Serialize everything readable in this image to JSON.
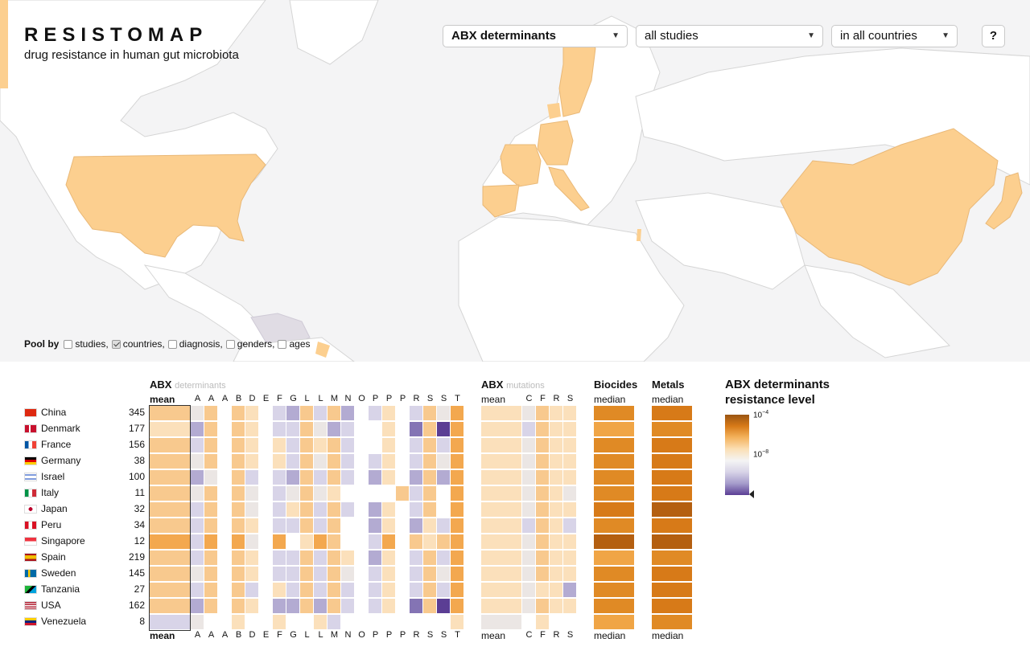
{
  "app": {
    "title": "RESISTOMAP",
    "subtitle": "drug resistance in human gut microbiota"
  },
  "controls": {
    "dataset": "ABX determinants",
    "studies": "all studies",
    "countries": "in all countries",
    "help": "?"
  },
  "pool": {
    "label": "Pool by",
    "options": [
      {
        "label": "studies,",
        "checked": false
      },
      {
        "label": "countries,",
        "checked": true
      },
      {
        "label": "diagnosis,",
        "checked": false
      },
      {
        "label": "genders,",
        "checked": false
      },
      {
        "label": "ages",
        "checked": false
      }
    ]
  },
  "colors": {
    "map_highlight": "#fccf8f",
    "map_bg": "#f4f4f5",
    "ocean": "#f4f4f5"
  },
  "groups": {
    "abx": {
      "title": "ABX",
      "sub": "determinants",
      "mean": "mean",
      "letters": [
        "A",
        "A",
        "A",
        "B",
        "D",
        "E",
        "F",
        "G",
        "L",
        "L",
        "M",
        "N",
        "O",
        "P",
        "P",
        "P",
        "R",
        "S",
        "S",
        "T"
      ]
    },
    "mut": {
      "title": "ABX",
      "sub": "mutations",
      "mean": "mean",
      "letters": [
        "C",
        "F",
        "R",
        "S"
      ]
    },
    "bio": {
      "title": "Biocides",
      "sub": "median"
    },
    "met": {
      "title": "Metals",
      "sub": "median"
    }
  },
  "countries": [
    {
      "name": "China",
      "count": "345"
    },
    {
      "name": "Denmark",
      "count": "177"
    },
    {
      "name": "France",
      "count": "156"
    },
    {
      "name": "Germany",
      "count": "38"
    },
    {
      "name": "Israel",
      "count": "100"
    },
    {
      "name": "Italy",
      "count": "11"
    },
    {
      "name": "Japan",
      "count": "32"
    },
    {
      "name": "Peru",
      "count": "34"
    },
    {
      "name": "Singapore",
      "count": "12"
    },
    {
      "name": "Spain",
      "count": "219"
    },
    {
      "name": "Sweden",
      "count": "145"
    },
    {
      "name": "Tanzania",
      "count": "27"
    },
    {
      "name": "USA",
      "count": "162"
    },
    {
      "name": "Venezuela",
      "count": "8"
    }
  ],
  "legend": {
    "title": "ABX determinants resistance level",
    "high": "10",
    "high_exp": "−4",
    "mid": "10",
    "mid_exp": "−8"
  },
  "matrix": {
    "abx_mean": [
      2,
      1,
      2,
      2,
      2,
      2,
      2,
      2,
      3,
      2,
      2,
      2,
      2,
      -1
    ],
    "abx": [
      [
        0,
        2,
        null,
        2,
        1,
        null,
        -1,
        -2,
        2,
        -1,
        2,
        -2,
        null,
        -1,
        1,
        null,
        -1,
        2,
        0,
        3
      ],
      [
        -2,
        2,
        null,
        2,
        1,
        null,
        -1,
        -1,
        2,
        0,
        -2,
        -1,
        null,
        null,
        1,
        null,
        -3,
        2,
        -4,
        3
      ],
      [
        -1,
        2,
        null,
        2,
        1,
        null,
        1,
        -1,
        2,
        1,
        2,
        -1,
        null,
        null,
        1,
        null,
        -1,
        2,
        -1,
        3
      ],
      [
        0,
        2,
        null,
        2,
        1,
        null,
        1,
        -1,
        2,
        0,
        2,
        -1,
        null,
        -1,
        1,
        null,
        -1,
        2,
        0,
        3
      ],
      [
        -2,
        0,
        null,
        2,
        -1,
        null,
        -1,
        -2,
        2,
        -1,
        2,
        -1,
        null,
        -2,
        1,
        null,
        -2,
        2,
        -2,
        3
      ],
      [
        0,
        2,
        null,
        2,
        0,
        null,
        -1,
        0,
        2,
        0,
        1,
        null,
        null,
        null,
        null,
        2,
        -1,
        2,
        null,
        3
      ],
      [
        -1,
        2,
        null,
        2,
        0,
        null,
        -1,
        1,
        2,
        -1,
        2,
        -1,
        null,
        -2,
        1,
        null,
        -1,
        2,
        null,
        3
      ],
      [
        -1,
        2,
        null,
        2,
        1,
        null,
        -1,
        -1,
        2,
        -1,
        2,
        null,
        null,
        -2,
        1,
        null,
        -2,
        1,
        -1,
        3
      ],
      [
        -1,
        3,
        null,
        3,
        0,
        null,
        3,
        null,
        1,
        3,
        2,
        null,
        null,
        -1,
        3,
        null,
        2,
        1,
        2,
        3
      ],
      [
        -1,
        2,
        null,
        2,
        1,
        null,
        -1,
        -1,
        2,
        -1,
        2,
        1,
        null,
        -2,
        1,
        null,
        -1,
        2,
        -1,
        3
      ],
      [
        0,
        2,
        null,
        2,
        1,
        null,
        -1,
        -1,
        2,
        -1,
        2,
        0,
        null,
        -1,
        1,
        null,
        -1,
        2,
        0,
        3
      ],
      [
        -1,
        2,
        null,
        2,
        -1,
        null,
        1,
        -1,
        2,
        -1,
        2,
        -1,
        null,
        -1,
        1,
        null,
        -1,
        2,
        -1,
        3
      ],
      [
        -2,
        2,
        null,
        2,
        1,
        null,
        -2,
        -2,
        2,
        -2,
        2,
        -1,
        null,
        -1,
        1,
        null,
        -3,
        2,
        -4,
        3
      ],
      [
        0,
        null,
        null,
        1,
        null,
        null,
        1,
        null,
        null,
        1,
        -1,
        null,
        null,
        null,
        null,
        null,
        null,
        null,
        null,
        1
      ]
    ],
    "mut_mean": [
      1,
      1,
      1,
      1,
      1,
      1,
      1,
      1,
      1,
      1,
      1,
      1,
      1,
      0
    ],
    "mut": [
      [
        0,
        2,
        1,
        1
      ],
      [
        -1,
        2,
        1,
        1
      ],
      [
        0,
        2,
        1,
        1
      ],
      [
        0,
        2,
        1,
        1
      ],
      [
        0,
        2,
        1,
        1
      ],
      [
        0,
        2,
        1,
        0
      ],
      [
        0,
        2,
        1,
        1
      ],
      [
        -1,
        2,
        1,
        -1
      ],
      [
        0,
        2,
        1,
        1
      ],
      [
        0,
        2,
        1,
        1
      ],
      [
        0,
        2,
        1,
        1
      ],
      [
        0,
        1,
        1,
        -2
      ],
      [
        0,
        2,
        1,
        1
      ],
      [
        null,
        1,
        null,
        null
      ]
    ],
    "bio": [
      5,
      4,
      5,
      5,
      5,
      5,
      6,
      5,
      7,
      4,
      5,
      5,
      5,
      4
    ],
    "met": [
      6,
      5,
      6,
      6,
      6,
      6,
      7,
      6,
      7,
      5,
      6,
      6,
      6,
      5
    ]
  }
}
